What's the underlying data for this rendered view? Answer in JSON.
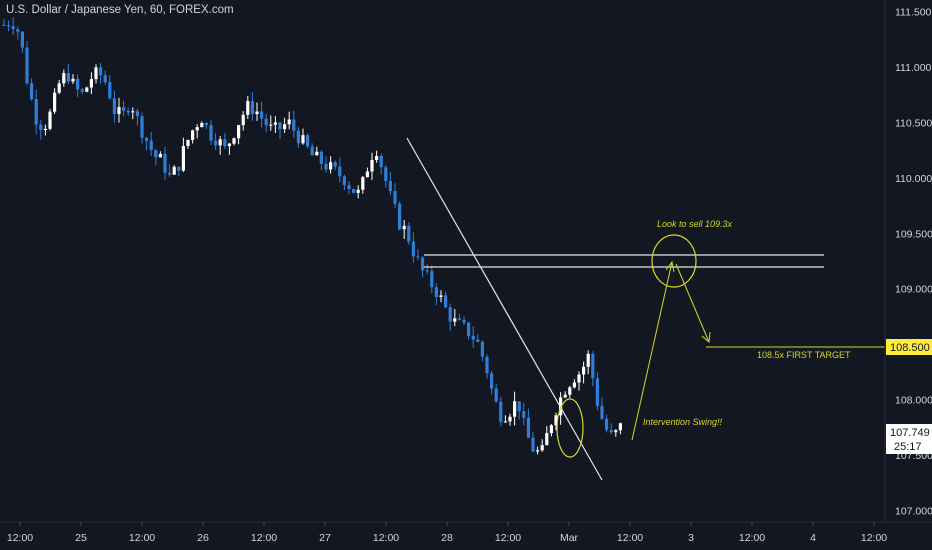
{
  "header": {
    "title": "U.S. Dollar / Japanese Yen, 60, FOREX.com"
  },
  "colors": {
    "background": "#131722",
    "up_candle": "#ffffff",
    "down_candle": "#2f7fd9",
    "annotation": "#d6d62a",
    "trendline": "#e6e6e6",
    "axis_text": "#d1d4dc",
    "price_label_bg": "#ffeb3b",
    "last_price_bg": "#ffffff"
  },
  "chart_data": {
    "type": "candlestick",
    "ylim": [
      106.95,
      111.55
    ],
    "y_ticks": [
      "111.500",
      "111.000",
      "110.500",
      "110.000",
      "109.500",
      "109.000",
      "108.500",
      "108.000",
      "107.500",
      "107.000"
    ],
    "x_ticks": [
      "12:00",
      "25",
      "12:00",
      "26",
      "12:00",
      "27",
      "12:00",
      "28",
      "12:00",
      "Mar",
      "12:00",
      "3",
      "12:00",
      "4",
      "12:00"
    ],
    "price_label": "108.500",
    "last_price": "107.749",
    "countdown": "25:17",
    "resistance_levels": [
      109.32,
      109.22
    ],
    "annotations": {
      "sell_note": "Look to sell 109.3x",
      "target_note": "108.5x FIRST TARGET",
      "swing_note": "Intervention Swing!!"
    },
    "ohlc_path": [
      111.38,
      111.42,
      111.3,
      110.85,
      110.55,
      110.45,
      110.6,
      110.85,
      110.95,
      110.8,
      110.75,
      110.9,
      110.95,
      110.85,
      110.6,
      110.55,
      110.7,
      110.5,
      110.35,
      110.2,
      110.15,
      110.0,
      110.1,
      110.3,
      110.45,
      110.55,
      110.4,
      110.35,
      110.25,
      110.4,
      110.55,
      110.65,
      110.6,
      110.5,
      110.42,
      110.45,
      110.5,
      110.4,
      110.3,
      110.2,
      110.15,
      110.1,
      110.05,
      110.0,
      109.9,
      109.85,
      110.1,
      110.3,
      110.05,
      109.8,
      109.6,
      109.5,
      109.3,
      109.15,
      109.05,
      108.95,
      108.8,
      108.7,
      108.65,
      108.6,
      108.5,
      108.3,
      108.0,
      107.85,
      107.9,
      108.0,
      107.7,
      107.55,
      107.5,
      107.75,
      107.95,
      108.1,
      108.2,
      108.25,
      108.4,
      108.0,
      107.75,
      107.65,
      107.75
    ]
  }
}
